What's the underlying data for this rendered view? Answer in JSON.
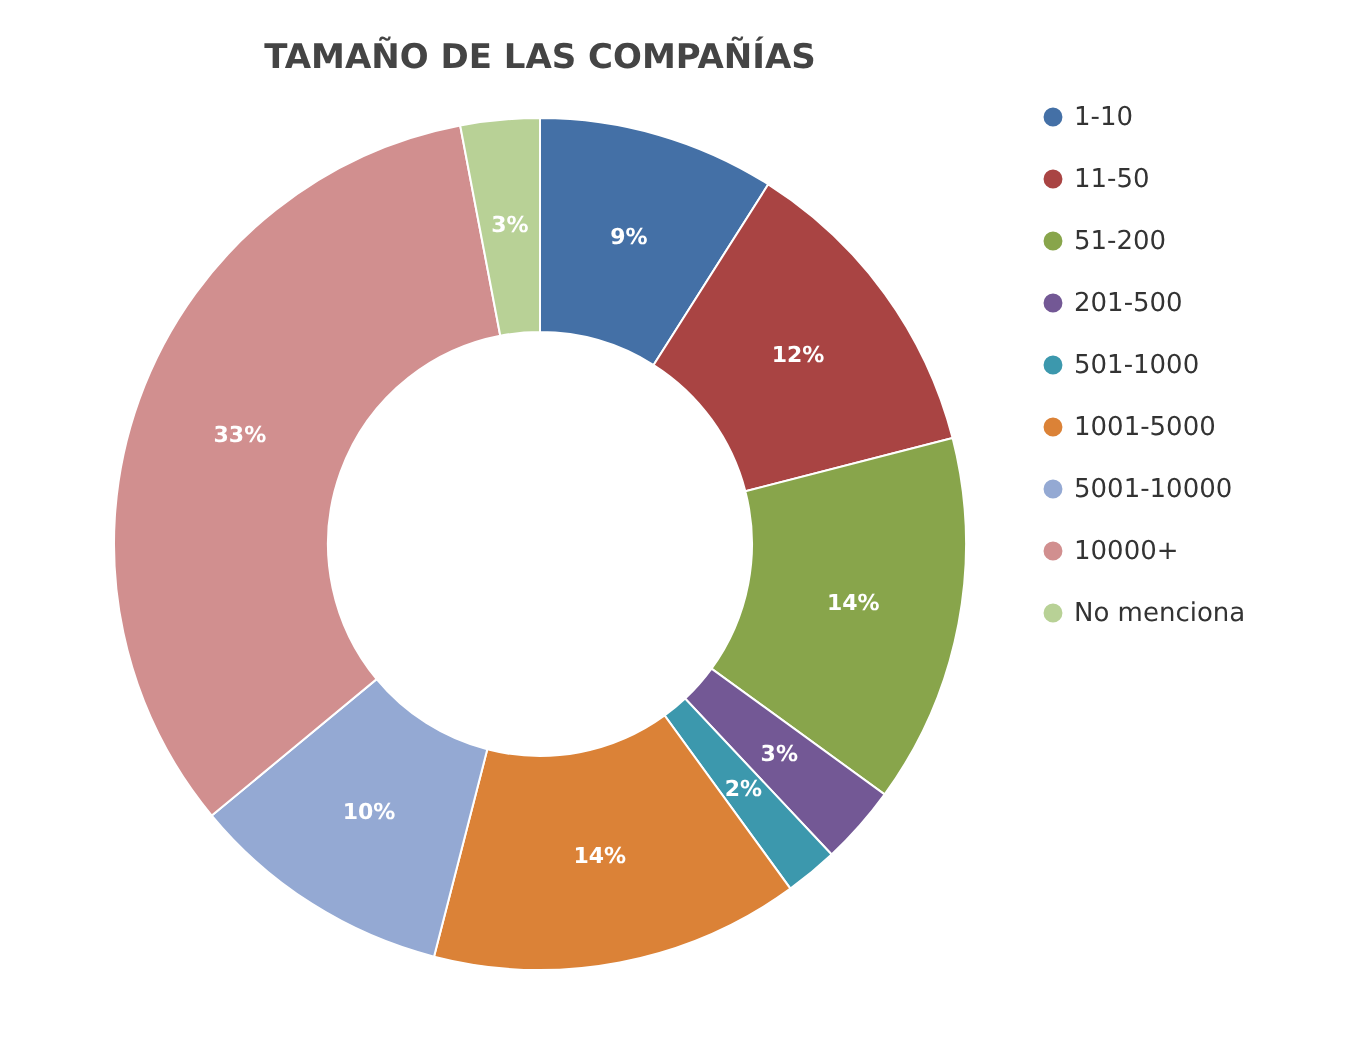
{
  "chart_data": {
    "type": "donut",
    "title": "TAMAÑO DE LAS COMPAÑÍAS",
    "categories": [
      "1-10",
      "11-50",
      "51-200",
      "201-500",
      "501-1000",
      "1001-5000",
      "5001-10000",
      "10000+",
      "No menciona"
    ],
    "values": [
      9,
      12,
      14,
      3,
      2,
      14,
      10,
      33,
      3
    ],
    "colors": [
      "#4470a6",
      "#a94443",
      "#88a54b",
      "#735895",
      "#3c98ad",
      "#db8237",
      "#94a9d3",
      "#d18f8f",
      "#b8d196"
    ],
    "value_labels": [
      "9%",
      "12%",
      "14%",
      "3%",
      "2%",
      "14%",
      "10%",
      "33%",
      "3%"
    ],
    "legend": "right"
  }
}
